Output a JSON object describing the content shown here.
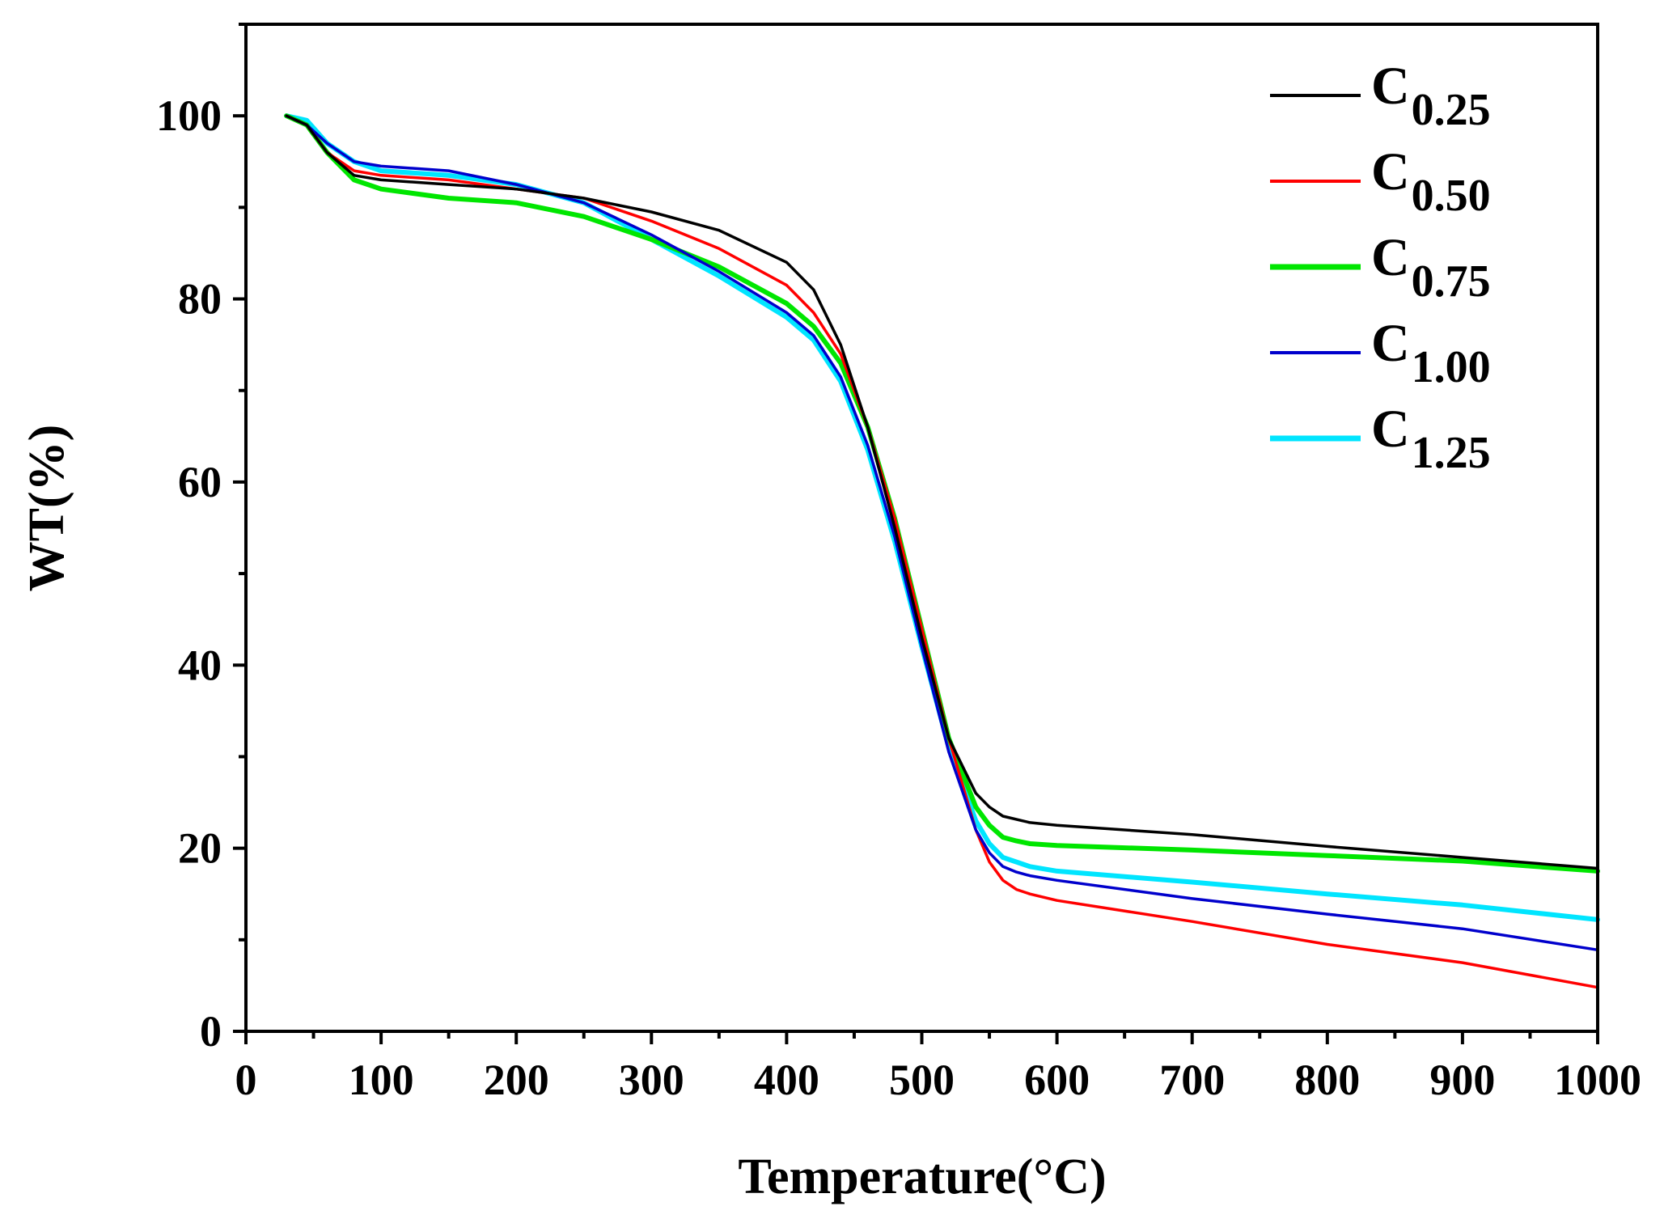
{
  "chart_data": {
    "type": "line",
    "title": "",
    "xlabel": "Temperature(°C)",
    "ylabel": "WT(%)",
    "xlim": [
      0,
      1000
    ],
    "ylim": [
      0,
      110
    ],
    "x_ticks": [
      "0",
      "100",
      "200",
      "300",
      "400",
      "500",
      "600",
      "700",
      "800",
      "900",
      "1000"
    ],
    "x_tick_values": [
      0,
      100,
      200,
      300,
      400,
      500,
      600,
      700,
      800,
      900,
      1000
    ],
    "y_ticks": [
      "0",
      "20",
      "40",
      "60",
      "80",
      "100"
    ],
    "y_tick_values": [
      0,
      20,
      40,
      60,
      80,
      100
    ],
    "grid": false,
    "legend_position": "top-right",
    "series": [
      {
        "name": "C0.25",
        "label_main": "C",
        "label_sub": "0.25",
        "color": "#000000",
        "x": [
          30,
          45,
          60,
          80,
          100,
          150,
          200,
          250,
          300,
          350,
          400,
          420,
          440,
          460,
          480,
          500,
          520,
          540,
          550,
          560,
          580,
          600,
          700,
          800,
          900,
          1000
        ],
        "y": [
          100,
          99,
          96,
          93.5,
          93,
          92.5,
          92,
          91,
          89.5,
          87.5,
          84,
          81,
          75,
          66,
          55,
          43,
          32,
          26,
          24.5,
          23.5,
          22.8,
          22.5,
          21.5,
          20.2,
          19,
          17.8
        ]
      },
      {
        "name": "C0.50",
        "label_main": "C",
        "label_sub": "0.50",
        "color": "#ff0000",
        "x": [
          30,
          45,
          60,
          80,
          100,
          150,
          200,
          250,
          300,
          350,
          400,
          420,
          440,
          460,
          480,
          500,
          520,
          540,
          550,
          560,
          570,
          580,
          600,
          700,
          800,
          900,
          1000
        ],
        "y": [
          100,
          99,
          96,
          94,
          93.5,
          93,
          92,
          91,
          88.5,
          85.5,
          81.5,
          78.5,
          74,
          66,
          56,
          44,
          32,
          22,
          18.5,
          16.5,
          15.5,
          15,
          14.3,
          12,
          9.5,
          7.5,
          4.8
        ]
      },
      {
        "name": "C0.75",
        "label_main": "C",
        "label_sub": "0.75",
        "color": "#00e600",
        "x": [
          30,
          45,
          60,
          80,
          100,
          150,
          200,
          250,
          300,
          350,
          400,
          420,
          440,
          460,
          480,
          500,
          520,
          540,
          550,
          560,
          570,
          580,
          600,
          700,
          800,
          900,
          1000
        ],
        "y": [
          100,
          99,
          96,
          93,
          92,
          91,
          90.5,
          89,
          86.5,
          83.5,
          79.5,
          77,
          73,
          66,
          56,
          44,
          32,
          24.5,
          22.5,
          21.2,
          20.8,
          20.5,
          20.3,
          19.8,
          19.2,
          18.6,
          17.5
        ]
      },
      {
        "name": "C1.00",
        "label_main": "C",
        "label_sub": "1.00",
        "color": "#0000cc",
        "x": [
          30,
          45,
          60,
          80,
          100,
          150,
          200,
          250,
          300,
          350,
          400,
          420,
          440,
          460,
          480,
          500,
          520,
          540,
          550,
          560,
          570,
          580,
          600,
          700,
          800,
          900,
          1000
        ],
        "y": [
          100,
          99,
          97,
          95,
          94.5,
          94,
          92.5,
          90.5,
          87,
          83,
          78.5,
          76,
          71.5,
          64,
          54,
          42,
          30.5,
          22,
          19.5,
          18,
          17.4,
          17,
          16.5,
          14.5,
          12.8,
          11.2,
          8.9
        ]
      },
      {
        "name": "C1.25",
        "label_main": "C",
        "label_sub": "1.25",
        "color": "#00e5ff",
        "x": [
          30,
          45,
          60,
          80,
          100,
          150,
          200,
          250,
          300,
          350,
          400,
          420,
          440,
          460,
          480,
          500,
          520,
          540,
          550,
          560,
          570,
          580,
          600,
          700,
          800,
          900,
          1000
        ],
        "y": [
          100,
          99.5,
          97,
          95,
          94,
          93.5,
          92.5,
          90.5,
          86.5,
          82.5,
          78,
          75.5,
          71,
          63.5,
          53.5,
          42,
          31,
          23,
          20.5,
          19,
          18.5,
          18,
          17.5,
          16.3,
          15,
          13.8,
          12.2
        ]
      }
    ]
  }
}
